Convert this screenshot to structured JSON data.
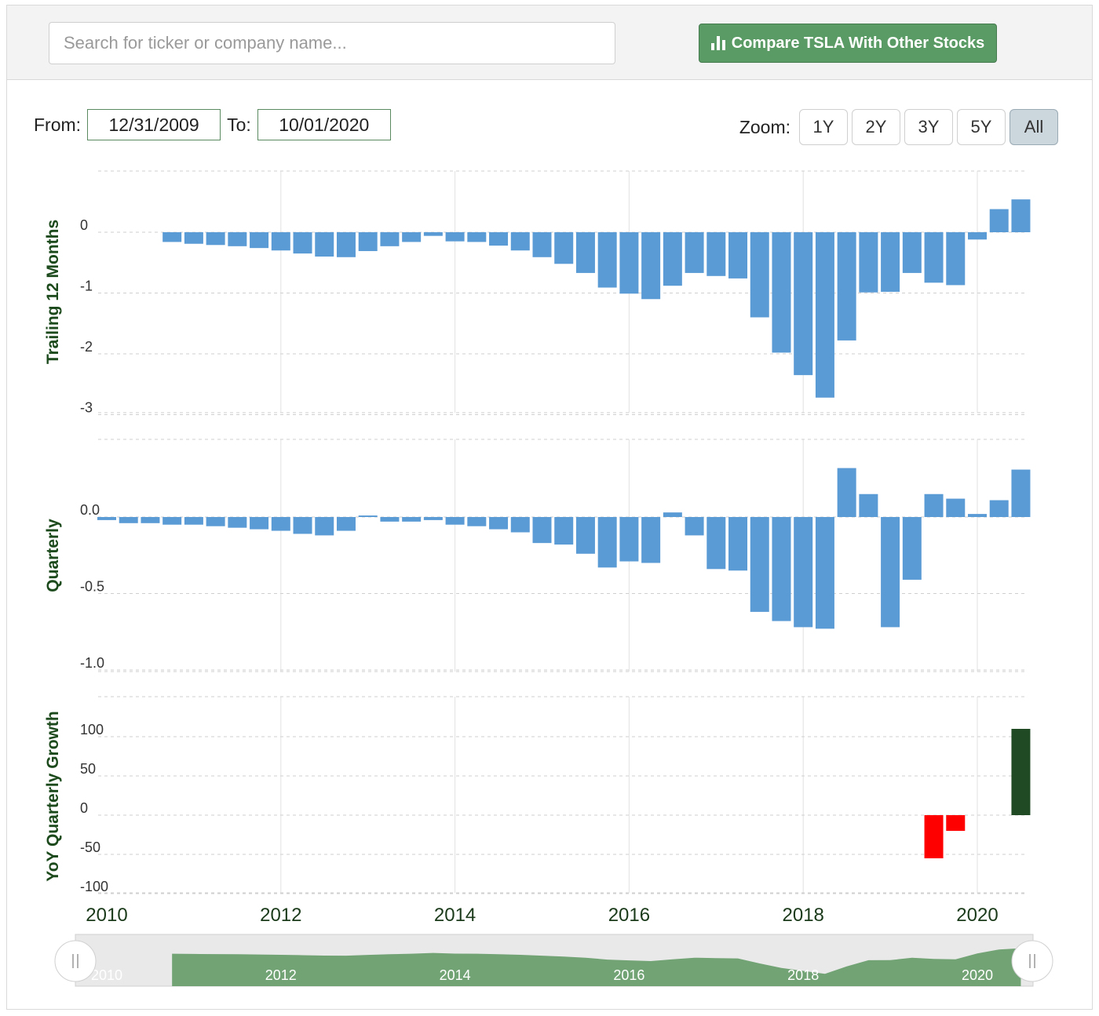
{
  "search": {
    "placeholder": "Search for ticker or company name..."
  },
  "compare_button": {
    "label": "Compare TSLA With Other Stocks",
    "icon": "bar-chart-icon",
    "color": "#5a9a64"
  },
  "date_range": {
    "from_label": "From:",
    "from_value": "12/31/2009",
    "to_label": "To:",
    "to_value": "10/01/2020"
  },
  "zoom": {
    "label": "Zoom:",
    "options": [
      "1Y",
      "2Y",
      "3Y",
      "5Y",
      "All"
    ],
    "active": "All"
  },
  "chart_data": [
    {
      "type": "bar",
      "ylabel": "Trailing 12 Months",
      "ylim": [
        -3,
        1
      ],
      "yticks": [
        "0",
        "-1",
        "-2",
        "-3"
      ],
      "color": "#5b9bd5",
      "x": [
        2010.75,
        2011.0,
        2011.25,
        2011.5,
        2011.75,
        2012.0,
        2012.25,
        2012.5,
        2012.75,
        2013.0,
        2013.25,
        2013.5,
        2013.75,
        2014.0,
        2014.25,
        2014.5,
        2014.75,
        2015.0,
        2015.25,
        2015.5,
        2015.75,
        2016.0,
        2016.25,
        2016.5,
        2016.75,
        2017.0,
        2017.25,
        2017.5,
        2017.75,
        2018.0,
        2018.25,
        2018.5,
        2018.75,
        2019.0,
        2019.25,
        2019.5,
        2019.75,
        2020.0,
        2020.25,
        2020.5
      ],
      "values": [
        -0.16,
        -0.19,
        -0.21,
        -0.23,
        -0.26,
        -0.3,
        -0.35,
        -0.4,
        -0.41,
        -0.31,
        -0.23,
        -0.16,
        -0.06,
        -0.15,
        -0.16,
        -0.22,
        -0.3,
        -0.41,
        -0.52,
        -0.67,
        -0.91,
        -1.01,
        -1.1,
        -0.88,
        -0.67,
        -0.72,
        -0.76,
        -1.4,
        -1.98,
        -2.35,
        -2.72,
        -1.78,
        -0.99,
        -0.98,
        -0.67,
        -0.83,
        -0.87,
        -0.12,
        0.38,
        0.54
      ]
    },
    {
      "type": "bar",
      "ylabel": "Quarterly",
      "ylim": [
        -1.0,
        0.35
      ],
      "yticks": [
        "0.0",
        "-0.5",
        "-1.0"
      ],
      "color": "#5b9bd5",
      "x": [
        2010.0,
        2010.25,
        2010.5,
        2010.75,
        2011.0,
        2011.25,
        2011.5,
        2011.75,
        2012.0,
        2012.25,
        2012.5,
        2012.75,
        2013.0,
        2013.25,
        2013.5,
        2013.75,
        2014.0,
        2014.25,
        2014.5,
        2014.75,
        2015.0,
        2015.25,
        2015.5,
        2015.75,
        2016.0,
        2016.25,
        2016.5,
        2016.75,
        2017.0,
        2017.25,
        2017.5,
        2017.75,
        2018.0,
        2018.25,
        2018.5,
        2018.75,
        2019.0,
        2019.25,
        2019.5,
        2019.75,
        2020.0,
        2020.25,
        2020.5
      ],
      "values": [
        -0.02,
        -0.04,
        -0.04,
        -0.05,
        -0.05,
        -0.06,
        -0.07,
        -0.08,
        -0.09,
        -0.11,
        -0.12,
        -0.09,
        0.01,
        -0.03,
        -0.03,
        -0.02,
        -0.05,
        -0.06,
        -0.08,
        -0.1,
        -0.17,
        -0.18,
        -0.24,
        -0.33,
        -0.29,
        -0.3,
        0.03,
        -0.12,
        -0.34,
        -0.35,
        -0.62,
        -0.68,
        -0.72,
        -0.73,
        0.32,
        0.15,
        -0.72,
        -0.41,
        0.15,
        0.12,
        0.02,
        0.11,
        0.31
      ]
    },
    {
      "type": "bar",
      "ylabel": "YoY Quarterly Growth",
      "ylim": [
        -100,
        150
      ],
      "yticks": [
        "100",
        "50",
        "0",
        "-50",
        "-100"
      ],
      "positive_color": "#1f4a24",
      "negative_color": "#ff0000",
      "x": [
        2019.5,
        2019.75,
        2020.5
      ],
      "values": [
        -55,
        -20,
        110
      ]
    }
  ],
  "xticks": [
    "2010",
    "2012",
    "2014",
    "2016",
    "2018",
    "2020"
  ],
  "navigator": {
    "labels": [
      "2010",
      "2012",
      "2014",
      "2016",
      "2018",
      "2020"
    ],
    "series_color": "#6a9f6e"
  }
}
